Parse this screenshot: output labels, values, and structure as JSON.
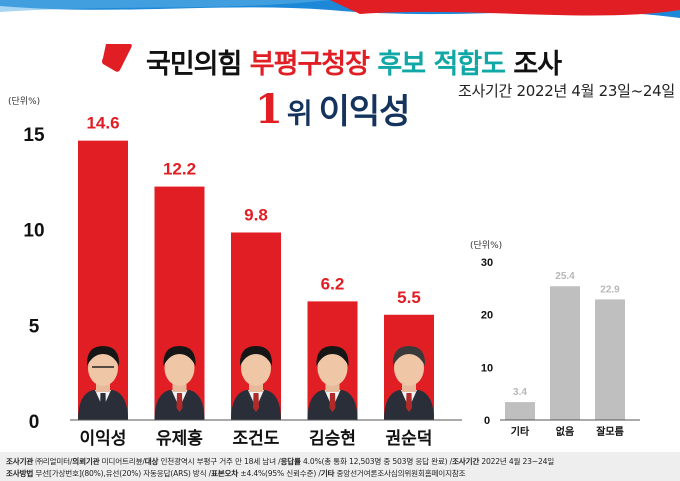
{
  "title": {
    "part1": "국민의힘",
    "part2": "부평구청장",
    "part3": "후보 적합도",
    "part4": "조사"
  },
  "period": "조사기간 2022년 4월 23일~24일",
  "headline": {
    "rank": "1",
    "unit": "위",
    "name": "이익성"
  },
  "colors": {
    "red": "#e01e24",
    "navy": "#14345e",
    "teal": "#12a7a7",
    "gray": "#bfbfbf"
  },
  "chart_data": [
    {
      "type": "bar",
      "unit_label": "(단위%)",
      "categories": [
        "이익성",
        "유제홍",
        "조건도",
        "김승현",
        "권순덕"
      ],
      "values": [
        14.6,
        12.2,
        9.8,
        6.2,
        5.5
      ],
      "value_labels": [
        "14.6",
        "12.2",
        "9.8",
        "6.2",
        "5.5"
      ],
      "ylim": [
        0,
        15
      ],
      "yticks": [
        0,
        5,
        10,
        15
      ],
      "bar_color": "#e01e24",
      "grid": false
    },
    {
      "type": "bar",
      "unit_label": "(단위%)",
      "categories": [
        "기타",
        "없음",
        "잘모름"
      ],
      "values": [
        3.4,
        25.4,
        22.9
      ],
      "value_labels": [
        "3.4",
        "25.4",
        "22.9"
      ],
      "ylim": [
        0,
        30
      ],
      "yticks": [
        0,
        10,
        20,
        30
      ],
      "bar_color": "#bfbfbf",
      "grid": false
    }
  ],
  "footer": {
    "line1": [
      {
        "k": "조사기관",
        "v": " ㈜리얼미터/"
      },
      {
        "k": "의뢰기관",
        "v": " 미디어트리뷴/"
      },
      {
        "k": "대상",
        "v": " 인천광역시 부평구 거주 만 18세 남녀 /"
      },
      {
        "k": "응답률",
        "v": " 4.0%(총 통화 12,503명 중 503명 응답 완료) /"
      },
      {
        "k": "조사기간",
        "v": " 2022년 4월 23~24일"
      }
    ],
    "line2": [
      {
        "k": "조사방법",
        "v": " 무선[가상번호](80%),유선(20%) 자동응답(ARS) 방식  /"
      },
      {
        "k": "표본오차",
        "v": " ±4.4%(95% 신뢰수준) /"
      },
      {
        "k": "기타",
        "v": " 중앙선거여론조사심의위원회홈페이지참조"
      }
    ]
  }
}
